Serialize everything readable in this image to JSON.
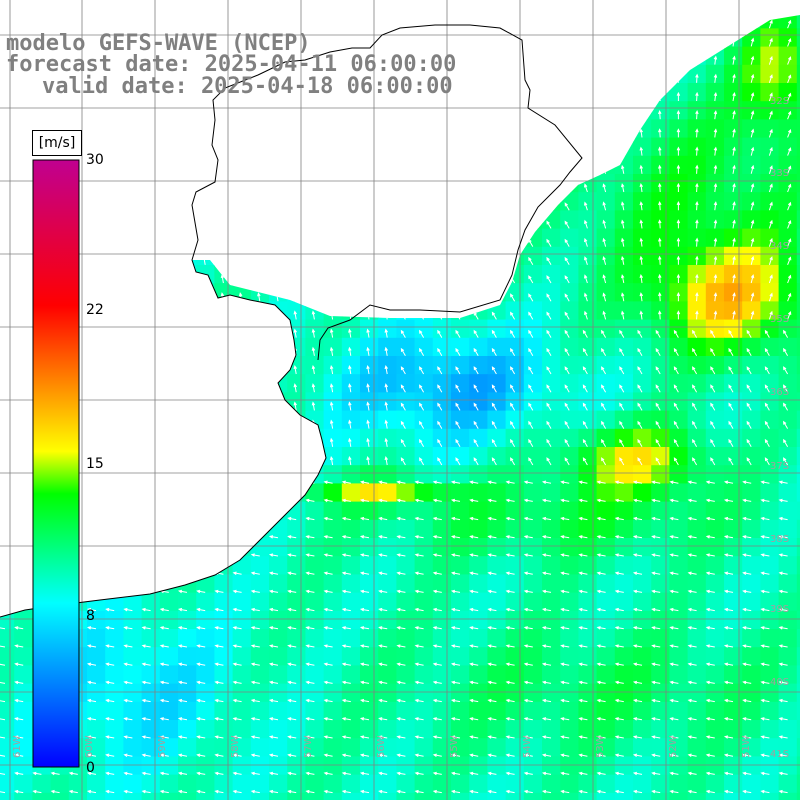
{
  "header": {
    "line1": "modelo GEFS-WAVE (NCEP)",
    "line2": "forecast date: 2025-04-11 06:00:00",
    "line3": "valid date: 2025-04-18 06:00:00"
  },
  "colorbar": {
    "unit": "[m/s]",
    "min": 0,
    "max": 30,
    "ticks": [
      "30",
      "22",
      "15",
      "8",
      "0"
    ],
    "colors": [
      "#0000ff",
      "#00ffff",
      "#00ff00",
      "#ffff00",
      "#ff0000",
      "#c00090"
    ]
  },
  "map": {
    "lon_range": [
      -61,
      -49
    ],
    "lat_range": [
      -41.5,
      -30.5
    ],
    "lat_labels": [
      "32S",
      "33S",
      "34S",
      "35S",
      "36S",
      "37S",
      "38S",
      "39S",
      "40S",
      "41S"
    ],
    "lon_labels": [
      "61W",
      "60W",
      "59W",
      "58W",
      "57W",
      "56W",
      "55W",
      "54W",
      "53W",
      "52W",
      "51W",
      "50W"
    ],
    "land_color": "#ffffff",
    "coast_color": "#000000",
    "grid_color": "#808080",
    "arrow_color": "#ffffff"
  }
}
